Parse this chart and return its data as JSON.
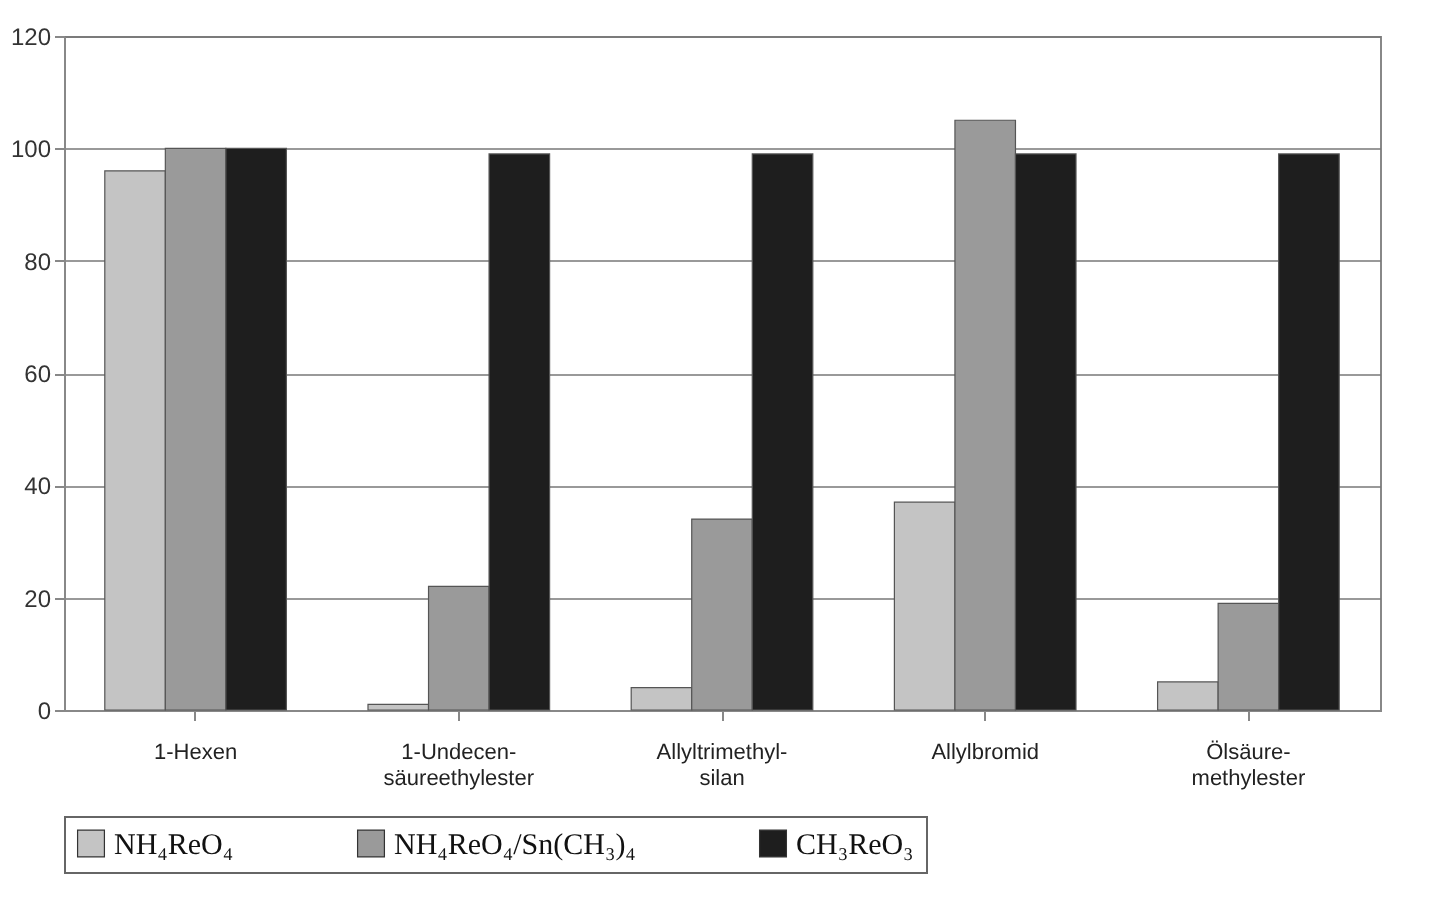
{
  "chart_data": {
    "type": "bar",
    "categories": [
      "1-Hexen",
      "1-Undecen-\nsäureethylester",
      "Allyltrimethyl-\nsilan",
      "Allylbromid",
      "Ölsäure-\nmethylester"
    ],
    "series": [
      {
        "name": "NH₄ReO₄",
        "color": "#c4c4c4",
        "values": [
          96,
          1,
          4,
          37,
          5
        ]
      },
      {
        "name": "NH₄ReO₄/Sn(CH₃)₄",
        "color": "#9a9a9a",
        "values": [
          100,
          22,
          34,
          105,
          19
        ]
      },
      {
        "name": "CH₃ReO₃",
        "color": "#1e1e1e",
        "values": [
          100,
          99,
          99,
          99,
          99
        ]
      }
    ],
    "ylim": [
      0,
      120
    ],
    "yticks": [
      0,
      20,
      40,
      60,
      80,
      100,
      120
    ],
    "grid": "y",
    "legend": "bottom"
  }
}
